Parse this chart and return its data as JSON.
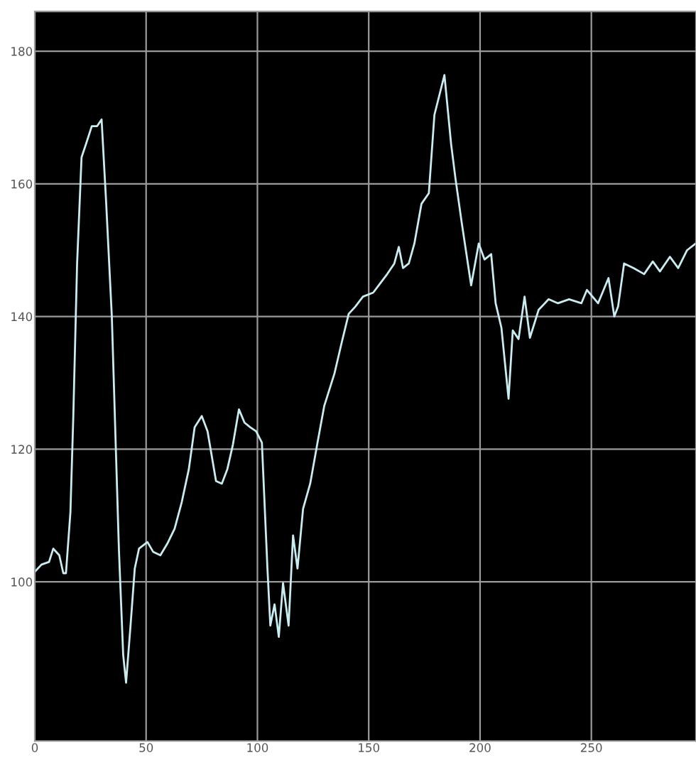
{
  "chart_data": {
    "type": "line",
    "x": [
      0,
      3,
      6.4,
      8.3,
      11,
      12.8,
      14,
      16,
      17.3,
      19,
      21,
      23,
      25.6,
      28,
      30,
      32,
      34.6,
      36.5,
      37.8,
      39.7,
      41,
      43,
      44.9,
      46.8,
      50.6,
      53.2,
      56.4,
      59.6,
      62.8,
      66,
      69.2,
      71.8,
      75,
      77.6,
      81.4,
      84,
      86.5,
      89,
      91.7,
      94.2,
      96.8,
      99.4,
      102,
      104.5,
      105.8,
      107.7,
      109.6,
      111.5,
      114,
      116,
      118,
      120.5,
      123.7,
      127,
      130,
      134.6,
      137.8,
      141,
      144,
      147.4,
      152,
      154.5,
      158.3,
      161.5,
      163.5,
      165.4,
      168,
      170.5,
      173.7,
      177,
      179.5,
      184,
      187,
      189,
      191.7,
      196,
      199.4,
      202,
      205,
      207,
      209.6,
      212.8,
      214.7,
      217.3,
      220,
      222.4,
      226.3,
      230.8,
      235,
      240,
      245.5,
      248,
      253,
      257.7,
      260.3,
      262,
      264.7,
      269,
      273.7,
      277.6,
      280.8,
      285.3,
      289,
      293,
      296.8
    ],
    "series": [
      {
        "color": "#c8ecf0",
        "values": [
          101.5,
          102.6,
          103,
          105,
          104,
          101.3,
          101.3,
          110.5,
          125,
          148,
          164,
          166,
          168.7,
          168.7,
          169.7,
          157.5,
          140,
          119,
          104.7,
          89,
          84.8,
          93.4,
          102,
          105,
          106,
          104.5,
          104,
          105.8,
          108,
          112,
          117,
          123.3,
          125,
          122.7,
          115.2,
          114.8,
          117,
          120.7,
          126,
          124,
          123.3,
          122.7,
          121,
          102,
          93.4,
          96.6,
          91.7,
          99.8,
          93.4,
          107,
          102,
          111,
          114.8,
          121,
          126.5,
          131.4,
          136,
          140.4,
          141.5,
          143,
          143.6,
          144.7,
          146.4,
          148,
          150.5,
          147.3,
          148,
          151,
          157,
          158.6,
          170.4,
          176.4,
          166,
          160.7,
          154.3,
          144.7,
          151,
          148.6,
          149.4,
          142,
          138.3,
          127.6,
          137.9,
          136.6,
          143,
          136.8,
          141,
          142.6,
          142,
          142.6,
          142,
          144,
          142,
          145.8,
          140,
          141.5,
          148,
          147.3,
          146.4,
          148.3,
          146.8,
          149,
          147.3,
          150,
          151
        ]
      }
    ],
    "xlim": [
      0,
      297
    ],
    "ylim": [
      76,
      186
    ],
    "xticks": [
      0,
      50,
      100,
      150,
      200,
      250
    ],
    "yticks": [
      100,
      120,
      140,
      160,
      180
    ],
    "grid": true,
    "marker": "none",
    "line_style": "solid"
  }
}
